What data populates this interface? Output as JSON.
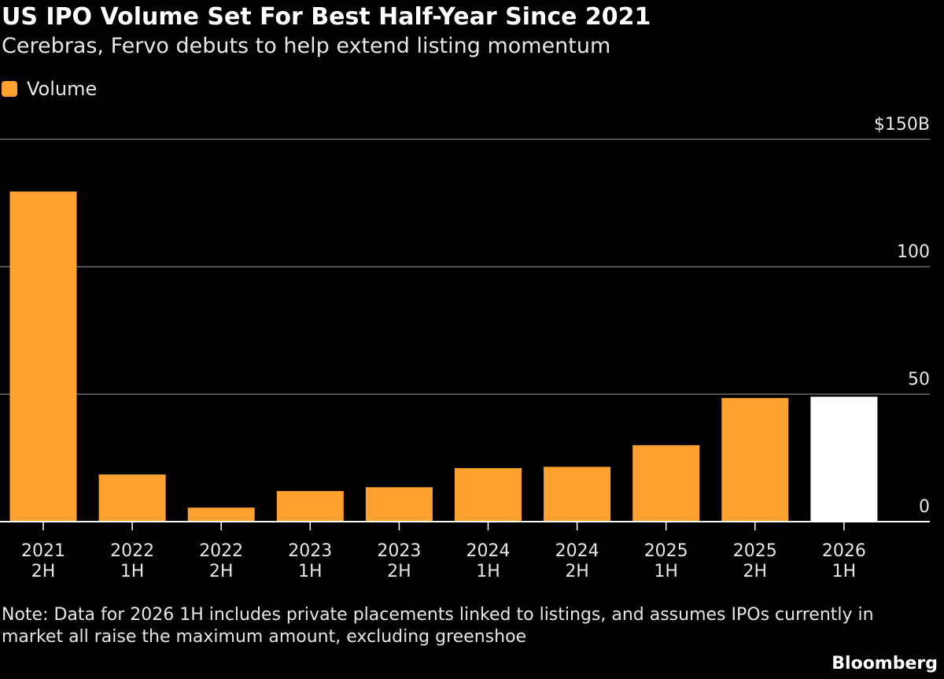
{
  "title": "US IPO Volume Set For Best Half-Year Since 2021",
  "subtitle": "Cerebras, Fervo debuts to help extend listing momentum",
  "legend": {
    "label": "Volume",
    "color": "#ffa12e"
  },
  "note": "Note: Data for 2026 1H includes private placements linked to listings, and assumes IPOs currently in market all raise the maximum amount, excluding greenshoe",
  "source": "Bloomberg",
  "chart_data": {
    "type": "bar",
    "title": "US IPO Volume Set For Best Half-Year Since 2021",
    "subtitle": "Cerebras, Fervo debuts to help extend listing momentum",
    "xlabel": "",
    "ylabel": "",
    "ylim": [
      0,
      150
    ],
    "y_ticks": [
      0,
      50,
      100,
      150
    ],
    "y_tick_labels": [
      "0",
      "50",
      "100",
      "$150B"
    ],
    "grid": true,
    "legend_position": "top-left",
    "categories": [
      [
        "2021",
        "2H"
      ],
      [
        "2022",
        "1H"
      ],
      [
        "2022",
        "2H"
      ],
      [
        "2023",
        "1H"
      ],
      [
        "2023",
        "2H"
      ],
      [
        "2024",
        "1H"
      ],
      [
        "2024",
        "2H"
      ],
      [
        "2025",
        "1H"
      ],
      [
        "2025",
        "2H"
      ],
      [
        "2026",
        "1H"
      ]
    ],
    "series": [
      {
        "name": "Volume",
        "values": [
          129.5,
          18.5,
          5.5,
          12,
          13.5,
          21,
          21.5,
          30,
          48.5,
          49
        ],
        "color": "#ffa12e",
        "highlight": {
          "index": 9,
          "color": "#ffffff"
        }
      }
    ]
  }
}
